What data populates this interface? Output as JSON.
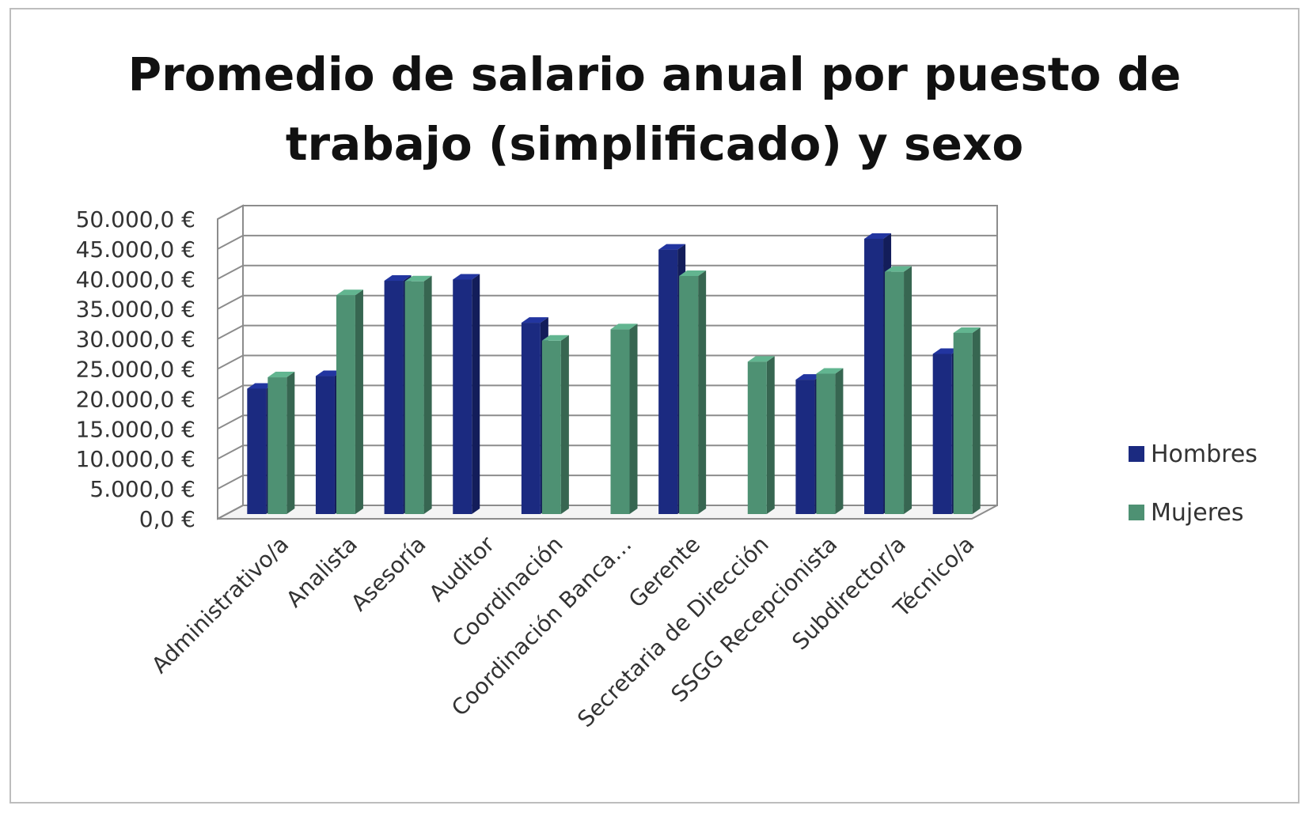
{
  "chart_data": {
    "type": "bar",
    "title_lines": [
      "Promedio de salario anual por puesto de",
      "trabajo (simplificado) y sexo"
    ],
    "categories": [
      "Administrativo/a",
      "Analista",
      "Asesoría",
      "Auditor",
      "Coordinación",
      "Coordinación Banca…",
      "Gerente",
      "Secretaria de Dirección",
      "SSGG Recepcionista",
      "Subdirector/a",
      "Técnico/a"
    ],
    "series": [
      {
        "name": "Hombres",
        "color": "#1b2a80",
        "values": [
          22500,
          24600,
          40500,
          40700,
          33500,
          null,
          45700,
          null,
          24000,
          47500,
          28300
        ]
      },
      {
        "name": "Mujeres",
        "color": "#4e9173",
        "values": [
          24400,
          38100,
          40400,
          null,
          30500,
          32400,
          41300,
          27000,
          25000,
          42000,
          31800
        ]
      }
    ],
    "y_ticks": [
      "0,0 €",
      "5.000,0 €",
      "10.000,0 €",
      "15.000,0 €",
      "20.000,0 €",
      "25.000,0 €",
      "30.000,0 €",
      "35.000,0 €",
      "40.000,0 €",
      "45.000,0 €",
      "50.000,0 €"
    ],
    "ylim": [
      0,
      50000
    ],
    "y_step": 5000,
    "grid": true,
    "legend_position": "right",
    "style_3d": true
  }
}
